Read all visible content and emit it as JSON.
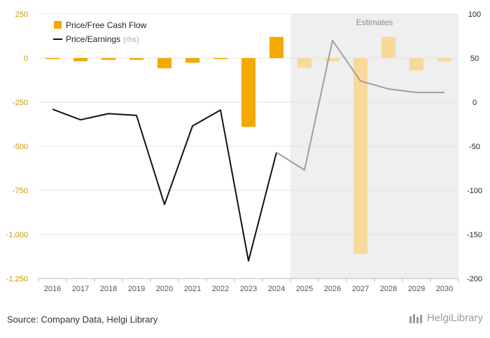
{
  "chart_data": {
    "type": "bar+line",
    "categories": [
      "2016",
      "2017",
      "2018",
      "2019",
      "2020",
      "2021",
      "2022",
      "2023",
      "2024",
      "2025",
      "2026",
      "2027",
      "2028",
      "2029",
      "2030"
    ],
    "estimates_from": "2025",
    "estimates_label": "Estimates",
    "series": [
      {
        "name": "Price/Free Cash Flow",
        "type": "bar",
        "axis": "left",
        "color": "#f5a800",
        "estimate_color": "#f7d99a",
        "values": [
          -4,
          -18,
          -10,
          -10,
          -58,
          -26,
          -4,
          -390,
          120,
          -55,
          -18,
          -1110,
          120,
          -70,
          -20
        ]
      },
      {
        "name": "Price/Earnings",
        "name_suffix": "(rhs)",
        "type": "line",
        "axis": "right",
        "color": "#111111",
        "estimate_color": "#9e9e9e",
        "values": [
          -8,
          -20,
          -13,
          -15,
          -116,
          -27,
          -9,
          -180,
          -57,
          -77,
          70,
          24,
          15,
          11,
          11
        ]
      }
    ],
    "y_left": {
      "min": -1250,
      "max": 250,
      "ticks": [
        250,
        0,
        -250,
        -500,
        -750,
        -1000,
        -1250
      ],
      "tick_labels": [
        "250",
        "0",
        "-250",
        "-500",
        "-750",
        "-1,000",
        "-1,250"
      ]
    },
    "y_right": {
      "min": -200,
      "max": 100,
      "ticks": [
        100,
        50,
        0,
        -50,
        -100,
        -150,
        -200
      ],
      "tick_labels": [
        "100",
        "50",
        "0",
        "-50",
        "-100",
        "-150",
        "-200"
      ]
    },
    "legend_position": "top-left"
  },
  "footer": {
    "source": "Source: Company Data, Helgi Library",
    "brand": "HelgiLibrary"
  }
}
